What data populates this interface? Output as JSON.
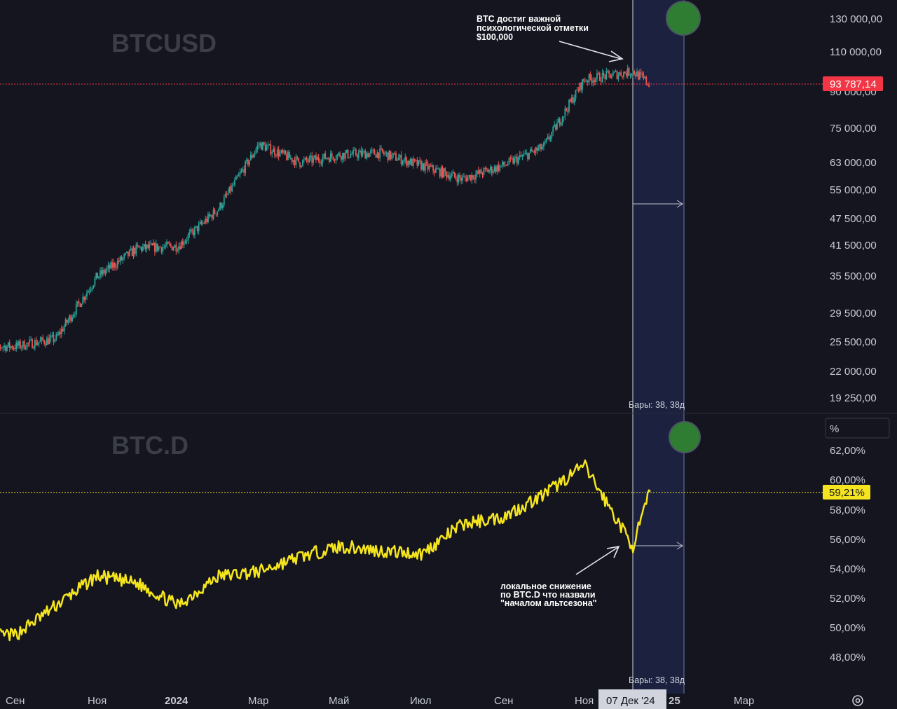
{
  "top_panel": {
    "watermark": "BTCUSD",
    "price_badge": "93 787,14",
    "bars_label": "Бары: 38, 38д",
    "annotation": [
      "BTC достиг важной",
      "психологической отметки",
      "$100,000"
    ],
    "y_ticks": [
      "130 000,00",
      "110 000,00",
      "90 000,00",
      "75 000,00",
      "63 000,00",
      "55 000,00",
      "47 500,00",
      "41 500,00",
      "35 500,00",
      "29 500,00",
      "25 500,00",
      "22 000,00",
      "19 250,00"
    ]
  },
  "bottom_panel": {
    "watermark": "BTC.D",
    "unit_box": "%",
    "value_badge": "59,21%",
    "bars_label": "Бары: 38, 38д",
    "annotation": [
      "локальное снижение",
      "по BTC.D что назвали",
      "\"началом альтсезона\""
    ],
    "y_ticks": [
      "62,00%",
      "60,00%",
      "58,00%",
      "56,00%",
      "54,00%",
      "52,00%",
      "50,00%",
      "48,00%"
    ]
  },
  "x_axis": {
    "ticks": [
      "Сен",
      "Ноя",
      "2024",
      "Мар",
      "Май",
      "Июл",
      "Сен",
      "Ноя",
      "25",
      "Мар"
    ],
    "crosshair_label": "07 Дек '24"
  },
  "colors": {
    "background": "#14151f",
    "up": "#26a69a",
    "down": "#ef5350",
    "dominance_line": "#f5e51e",
    "price_badge": "#f23645",
    "value_badge": "#f5e51e",
    "range_highlight": "#1b2240",
    "marker": "#2e7d32"
  },
  "chart_data": [
    {
      "type": "candlestick",
      "title": "BTCUSD",
      "y_scale": "log",
      "ylim": [
        18500,
        135000
      ],
      "last_price": 93787.14,
      "x": [
        "2023-09",
        "2023-10",
        "2023-11",
        "2023-12",
        "2024-01",
        "2024-02",
        "2024-03",
        "2024-04",
        "2024-05",
        "2024-06",
        "2024-07",
        "2024-08",
        "2024-09",
        "2024-10",
        "2024-11",
        "2024-12-07",
        "2024-12-20"
      ],
      "values": [
        26000,
        27000,
        36500,
        42000,
        42500,
        51000,
        70000,
        64000,
        66500,
        67000,
        63000,
        59000,
        63000,
        69000,
        96000,
        100000,
        93787
      ],
      "range_start": "2024-12-07",
      "range_bars": 38
    },
    {
      "type": "line",
      "title": "BTC.D",
      "y_unit": "%",
      "ylim": [
        47,
        63
      ],
      "last_value": 59.21,
      "x": [
        "2023-09",
        "2023-10",
        "2023-11",
        "2023-12",
        "2024-01",
        "2024-02",
        "2024-03",
        "2024-04",
        "2024-05",
        "2024-06",
        "2024-07",
        "2024-08",
        "2024-09",
        "2024-10",
        "2024-11",
        "2024-12-07",
        "2024-12-20"
      ],
      "values": [
        49.5,
        51.5,
        53.5,
        53.0,
        51.5,
        53.5,
        53.8,
        54.8,
        55.5,
        55.2,
        55.0,
        57.0,
        57.5,
        59.0,
        61.0,
        55.5,
        59.21
      ]
    }
  ]
}
